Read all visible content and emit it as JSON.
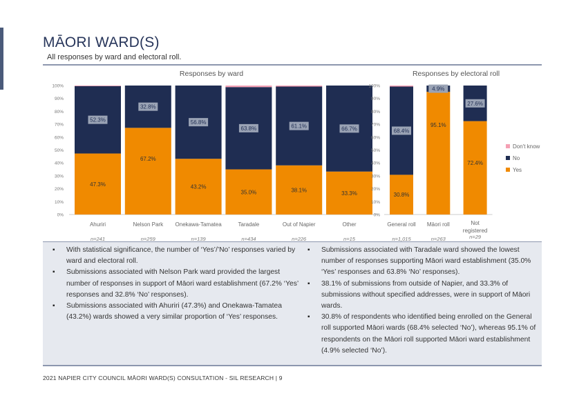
{
  "page": {
    "title": "MĀORI WARD(S)",
    "subtitle": "All responses by ward and electoral roll.",
    "footer": "2021 NAPIER CITY COUNCIL MĀORI WARD(S) CONSULTATION - SIL RESEARCH | 9"
  },
  "colors": {
    "yes": "#f08a00",
    "no": "#1f2d52",
    "dont_know": "#f4a0b4",
    "label_box": "#9aa3b5"
  },
  "chart_data": [
    {
      "type": "bar",
      "stacked": true,
      "title": "Responses by ward",
      "ylim": [
        0,
        100
      ],
      "yticks": [
        "0%",
        "10%",
        "20%",
        "30%",
        "40%",
        "50%",
        "60%",
        "70%",
        "80%",
        "90%",
        "100%"
      ],
      "categories": [
        "Ahuriri",
        "Nelson Park",
        "Onekawa-Tamatea",
        "Taradale",
        "Out of Napier",
        "Other"
      ],
      "sample_sizes": [
        "n=241",
        "n=259",
        "n=139",
        "n=434",
        "n=226",
        "n=15"
      ],
      "series": [
        {
          "name": "Yes",
          "values": [
            47.3,
            67.2,
            43.2,
            35.0,
            38.1,
            33.3
          ],
          "labels": [
            "47.3%",
            "67.2%",
            "43.2%",
            "35.0%",
            "38.1%",
            "33.3%"
          ]
        },
        {
          "name": "No",
          "values": [
            52.3,
            32.8,
            56.8,
            63.8,
            61.1,
            66.7
          ],
          "labels": [
            "52.3%",
            "32.8%",
            "56.8%",
            "63.8%",
            "61.1%",
            "66.7%"
          ]
        },
        {
          "name": "Don't know",
          "values": [
            0.4,
            0,
            0,
            1.2,
            0.8,
            0
          ],
          "labels": [
            "",
            "",
            "",
            "",
            "",
            ""
          ]
        }
      ]
    },
    {
      "type": "bar",
      "stacked": true,
      "title": "Responses by electoral roll",
      "ylim": [
        0,
        100
      ],
      "yticks": [
        "0%",
        "10%",
        "20%",
        "30%",
        "40%",
        "50%",
        "60%",
        "70%",
        "80%",
        "90%",
        "100%"
      ],
      "categories": [
        "General roll",
        "Māori roll",
        "Not registered"
      ],
      "sample_sizes": [
        "n=1,015",
        "n=263",
        "n=29"
      ],
      "series": [
        {
          "name": "Yes",
          "values": [
            30.8,
            95.1,
            72.4
          ],
          "labels": [
            "30.8%",
            "95.1%",
            "72.4%"
          ]
        },
        {
          "name": "No",
          "values": [
            68.4,
            4.9,
            27.6
          ],
          "labels": [
            "68.4%",
            "4.9%",
            "27.6%"
          ]
        },
        {
          "name": "Don't know",
          "values": [
            0.8,
            0,
            0
          ],
          "labels": [
            "",
            "",
            ""
          ]
        }
      ],
      "legend": {
        "position": "right",
        "entries": [
          "Don't know",
          "No",
          "Yes"
        ]
      }
    }
  ],
  "notes": {
    "left": [
      "With statistical significance, the number of ‘Yes’/’No’ responses varied by ward and electoral roll.",
      "Submissions associated with Nelson Park ward provided the largest number of responses in support of Māori ward establishment (67.2% ‘Yes’ responses and 32.8% ‘No’ responses).",
      " Submissions associated with Ahuriri (47.3%) and Onekawa-Tamatea (43.2%) wards showed a very  similar proportion of ‘Yes’ responses."
    ],
    "right": [
      "Submissions associated with Taradale ward showed the lowest number of responses supporting Māori ward establishment (35.0% ‘Yes’ responses and 63.8% ‘No’ responses).",
      "38.1% of submissions from outside of Napier, and 33.3% of submissions without specified addresses, were in support of Māori wards.",
      "30.8% of respondents who identified being enrolled on the General roll supported Māori wards (68.4% selected ‘No’), whereas 95.1% of respondents on the Māori roll supported Māori ward establishment (4.9% selected ‘No’)."
    ]
  }
}
